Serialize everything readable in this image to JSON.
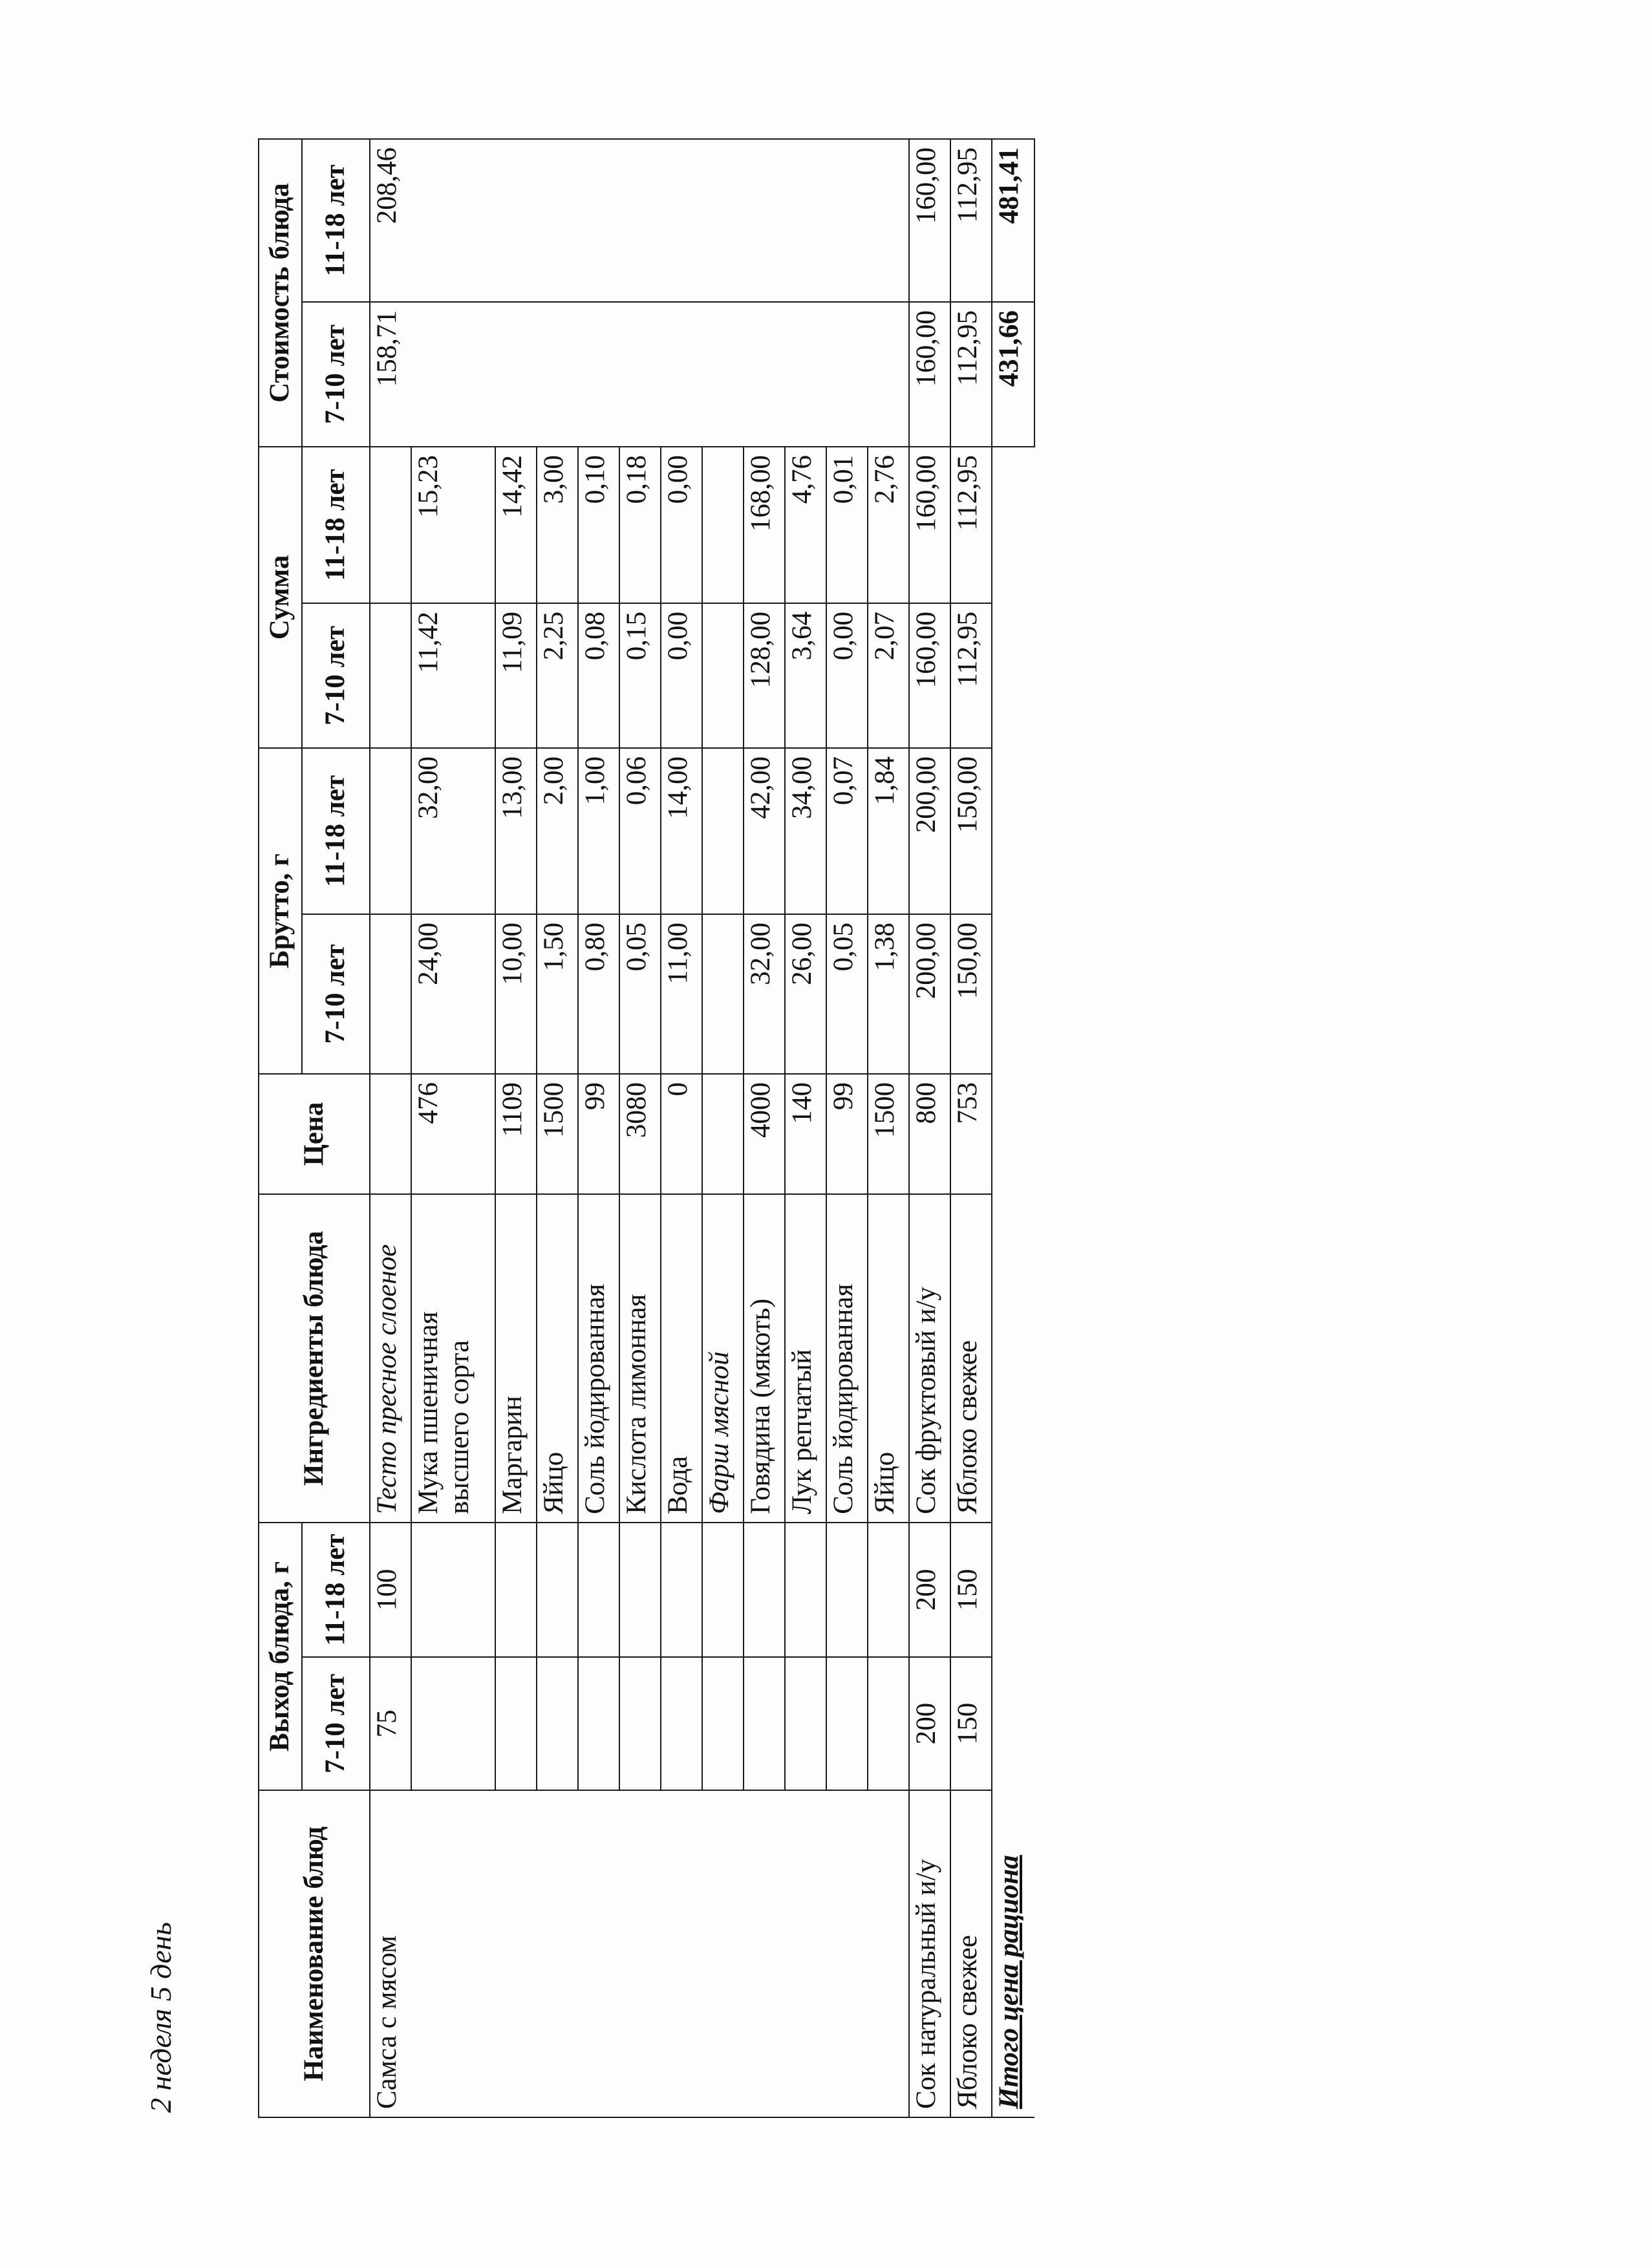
{
  "caption": "2 неделя 5 день",
  "headers": {
    "dish_name": "Наименование блюд",
    "yield": "Выход блюда, г",
    "yield_7_10": "7-10 лет",
    "yield_11_18": "11-18 лет",
    "ingredients": "Ингредиенты блюда",
    "price": "Цена",
    "brutto": "Брутто, г",
    "sum": "Сумма",
    "cost": "Стоимость блюда",
    "age_7_10": "7-10 лет",
    "age_11_18": "11-18 лет"
  },
  "dishes": [
    {
      "name": "Самса с мясом",
      "yield_7_10": "75",
      "yield_11_18": "100",
      "cost_7_10": "158,71",
      "cost_11_18": "208,46",
      "ingredients": [
        {
          "name": "Тесто пресное слоеное",
          "italic": true,
          "price": "",
          "b7": "",
          "b11": "",
          "s7": "",
          "s11": ""
        },
        {
          "name": "Мука пшеничная высшего сорта",
          "price": "476",
          "b7": "24,00",
          "b11": "32,00",
          "s7": "11,42",
          "s11": "15,23"
        },
        {
          "name": "Маргарин",
          "price": "1109",
          "b7": "10,00",
          "b11": "13,00",
          "s7": "11,09",
          "s11": "14,42"
        },
        {
          "name": "Яйцо",
          "price": "1500",
          "b7": "1,50",
          "b11": "2,00",
          "s7": "2,25",
          "s11": "3,00"
        },
        {
          "name": "Соль йодированная",
          "price": "99",
          "b7": "0,80",
          "b11": "1,00",
          "s7": "0,08",
          "s11": "0,10"
        },
        {
          "name": "Кислота лимонная",
          "price": "3080",
          "b7": "0,05",
          "b11": "0,06",
          "s7": "0,15",
          "s11": "0,18"
        },
        {
          "name": "Вода",
          "price": "0",
          "b7": "11,00",
          "b11": "14,00",
          "s7": "0,00",
          "s11": "0,00"
        },
        {
          "name": "Фарш мясной",
          "italic": true,
          "price": "",
          "b7": "",
          "b11": "",
          "s7": "",
          "s11": ""
        },
        {
          "name": "Говядина (мякоть)",
          "price": "4000",
          "b7": "32,00",
          "b11": "42,00",
          "s7": "128,00",
          "s11": "168,00"
        },
        {
          "name": "Лук репчатый",
          "price": "140",
          "b7": "26,00",
          "b11": "34,00",
          "s7": "3,64",
          "s11": "4,76"
        },
        {
          "name": "Соль йодированная",
          "price": "99",
          "b7": "0,05",
          "b11": "0,07",
          "s7": "0,00",
          "s11": "0,01"
        },
        {
          "name": "Яйцо",
          "price": "1500",
          "b7": "1,38",
          "b11": "1,84",
          "s7": "2,07",
          "s11": "2,76"
        }
      ]
    },
    {
      "name": "Сок натуральный и/у",
      "yield_7_10": "200",
      "yield_11_18": "200",
      "cost_7_10": "160,00",
      "cost_11_18": "160,00",
      "ingredients": [
        {
          "name": "Сок фруктовый и/у",
          "price": "800",
          "b7": "200,00",
          "b11": "200,00",
          "s7": "160,00",
          "s11": "160,00"
        }
      ]
    },
    {
      "name": "Яблоко свежее",
      "yield_7_10": "150",
      "yield_11_18": "150",
      "cost_7_10": "112,95",
      "cost_11_18": "112,95",
      "ingredients": [
        {
          "name": "Яблоко свежее",
          "price": "753",
          "b7": "150,00",
          "b11": "150,00",
          "s7": "112,95",
          "s11": "112,95"
        }
      ]
    }
  ],
  "total": {
    "label": "Итого цена рациона",
    "cost_7_10": "431,66",
    "cost_11_18": "481,41"
  }
}
